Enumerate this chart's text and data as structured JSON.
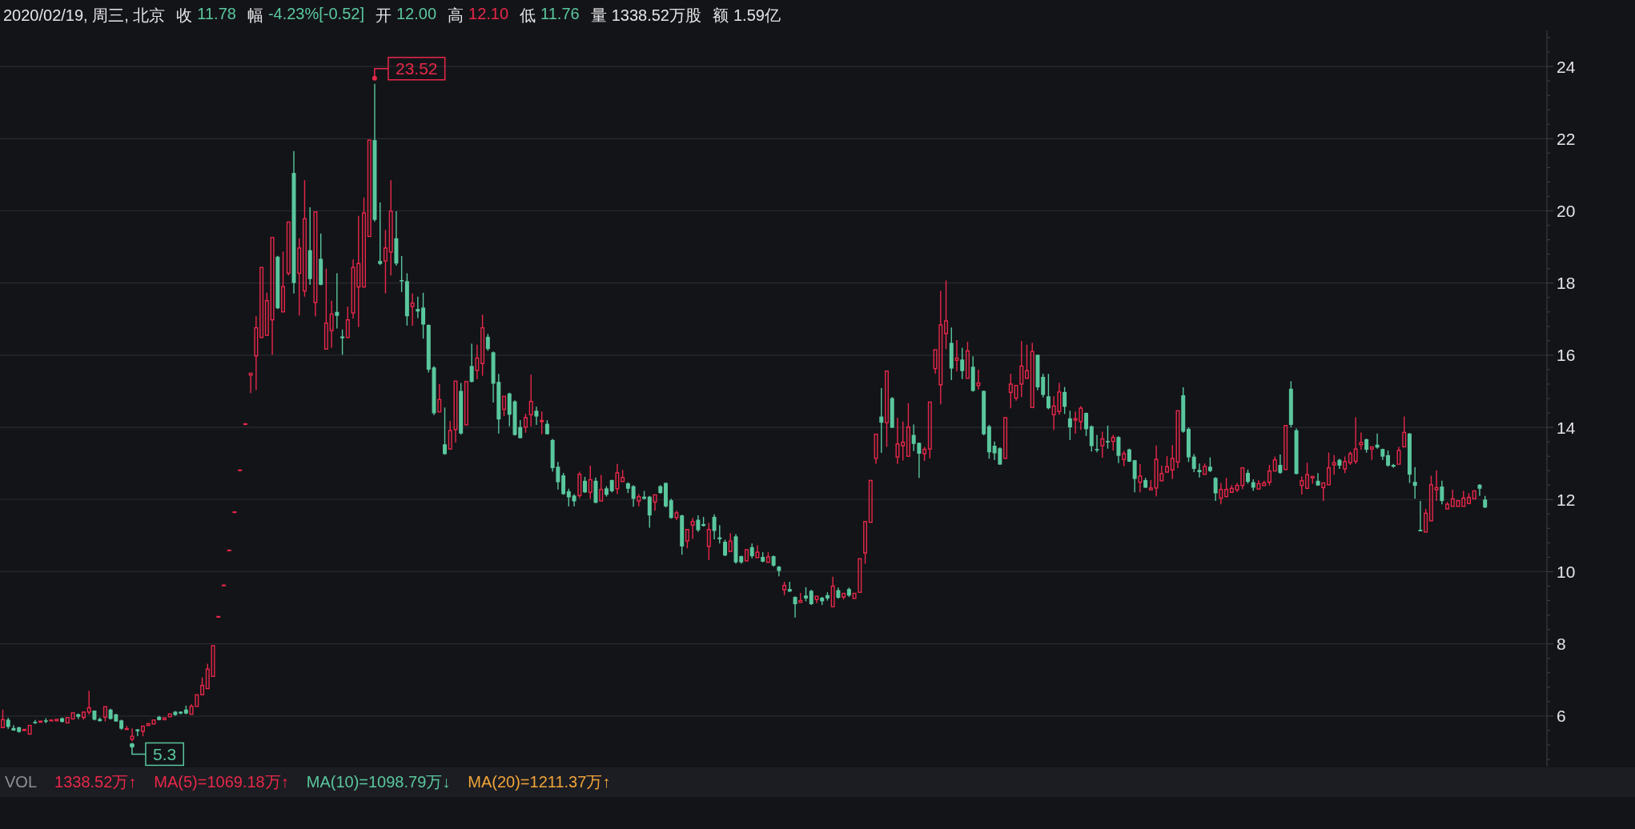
{
  "chart_data": {
    "type": "candlestick",
    "title": "2020/02/19, 周三, 北京",
    "annotations": [
      "收 11.78",
      "幅 -4.23%[-0.52]",
      "开 12.00",
      "高 12.10",
      "低 11.76",
      "量 1338.52万股",
      "额 1.59亿",
      "VOL",
      "1338.52万↑",
      "MA(5)=1069.18万↑",
      "MA(10)=1098.79万↓",
      "MA(20)=1211.37万↑",
      "23.52",
      "5.3"
    ],
    "categories": [
      null,
      null,
      null,
      null,
      null,
      null,
      null,
      null,
      null,
      null,
      null,
      null,
      null,
      null,
      null,
      null,
      null,
      null,
      null,
      null,
      null,
      null,
      null,
      null,
      null,
      null,
      null,
      null,
      null,
      null,
      null,
      null,
      null,
      null,
      null,
      null,
      null,
      null,
      null,
      null,
      null,
      null,
      null,
      null,
      null,
      null,
      null,
      null,
      null,
      null,
      null,
      null,
      null,
      null,
      null,
      null,
      null,
      null,
      null,
      null,
      null,
      null,
      null,
      null,
      null,
      null,
      null,
      null,
      null,
      null,
      null,
      null,
      null,
      null,
      null,
      null,
      null,
      null,
      null,
      null,
      null,
      null,
      null,
      null,
      null,
      null,
      null,
      null,
      null,
      null,
      null,
      null,
      null,
      null,
      null,
      null,
      null,
      null,
      null,
      null,
      null,
      null,
      null,
      null,
      null,
      null,
      null,
      null,
      null,
      null,
      null,
      null,
      null,
      null,
      null,
      null,
      null,
      null,
      null,
      null,
      null,
      null,
      null,
      null,
      null,
      null,
      null,
      null,
      null,
      null,
      null,
      null,
      null,
      null,
      null,
      null,
      null,
      null,
      null,
      null,
      null,
      null,
      null,
      null,
      null,
      null,
      null,
      null,
      null,
      null,
      null,
      null,
      null,
      null,
      null,
      null,
      null,
      null,
      null,
      null,
      null,
      null,
      null,
      null,
      null,
      null,
      null,
      null,
      null,
      null,
      null,
      null,
      null,
      null,
      null,
      null,
      null,
      null,
      null,
      null,
      null,
      null,
      null,
      null,
      null,
      null,
      null,
      null,
      null,
      null,
      null,
      null,
      null,
      null,
      null,
      null,
      null,
      null,
      null,
      null,
      null,
      null,
      null,
      null,
      null,
      null,
      null,
      null,
      null,
      null,
      null,
      null,
      null,
      null,
      null,
      null,
      null,
      null,
      null,
      null,
      null,
      null,
      null,
      null,
      null,
      null,
      null,
      null,
      null,
      null,
      null,
      null,
      null,
      null,
      null,
      null,
      null,
      null,
      null,
      null,
      null,
      null,
      null,
      null,
      null,
      null,
      null,
      null,
      null,
      null,
      null,
      null,
      null,
      null,
      null,
      null,
      null,
      null,
      null,
      null,
      null,
      null,
      null,
      null,
      null,
      null,
      null,
      null,
      null,
      null,
      null,
      null,
      null,
      null,
      null,
      null,
      null,
      null,
      null,
      null,
      null,
      null,
      null,
      null,
      null,
      null,
      null
    ],
    "ohlc": [
      [
        5.68,
        6.18,
        5.65,
        5.9
      ],
      [
        5.9,
        5.95,
        5.65,
        5.7
      ],
      [
        5.67,
        5.75,
        5.59,
        5.6
      ],
      [
        5.69,
        5.7,
        5.54,
        5.56
      ],
      [
        5.6,
        5.64,
        5.6,
        5.63
      ],
      [
        5.5,
        5.76,
        5.49,
        5.74
      ],
      [
        5.84,
        5.89,
        5.78,
        5.82
      ],
      [
        5.83,
        5.88,
        5.81,
        5.86
      ],
      [
        5.88,
        5.94,
        5.8,
        5.85
      ],
      [
        5.87,
        5.9,
        5.86,
        5.89
      ],
      [
        5.87,
        5.94,
        5.83,
        5.91
      ],
      [
        5.94,
        5.96,
        5.82,
        5.84
      ],
      [
        5.81,
        5.97,
        5.8,
        5.96
      ],
      [
        5.92,
        6.12,
        5.9,
        6.09
      ],
      [
        6.05,
        6.07,
        5.92,
        5.98
      ],
      [
        5.96,
        6.15,
        5.9,
        6.11
      ],
      [
        6.11,
        6.7,
        6.04,
        6.23
      ],
      [
        6.15,
        6.16,
        5.88,
        5.9
      ],
      [
        5.92,
        5.96,
        5.85,
        5.86
      ],
      [
        5.97,
        6.27,
        5.85,
        6.26
      ],
      [
        6.18,
        6.2,
        5.9,
        5.92
      ],
      [
        6.05,
        6.06,
        5.84,
        5.85
      ],
      [
        5.88,
        5.9,
        5.62,
        5.65
      ],
      [
        5.63,
        5.73,
        5.62,
        5.65
      ],
      [
        5.36,
        5.66,
        5.3,
        5.44
      ],
      [
        5.63,
        5.64,
        5.44,
        5.58
      ],
      [
        5.58,
        5.74,
        5.44,
        5.72
      ],
      [
        5.74,
        5.8,
        5.73,
        5.79
      ],
      [
        5.78,
        5.92,
        5.77,
        5.89
      ],
      [
        5.98,
        6.0,
        5.88,
        5.89
      ],
      [
        5.9,
        5.96,
        5.89,
        5.95
      ],
      [
        5.98,
        6.07,
        5.95,
        6.06
      ],
      [
        6.12,
        6.14,
        6.01,
        6.03
      ],
      [
        6.12,
        6.13,
        6.05,
        6.07
      ],
      [
        6.18,
        6.29,
        6.05,
        6.07
      ],
      [
        6.05,
        6.33,
        6.03,
        6.27
      ],
      [
        6.27,
        6.6,
        6.26,
        6.59
      ],
      [
        6.59,
        7.07,
        6.55,
        6.85
      ],
      [
        6.76,
        7.45,
        6.72,
        7.3
      ],
      [
        7.1,
        7.95,
        7.05,
        7.95
      ],
      [
        8.75,
        8.75,
        8.75,
        8.75
      ],
      [
        9.62,
        9.62,
        9.62,
        9.62
      ],
      [
        10.59,
        10.59,
        10.59,
        10.59
      ],
      [
        11.65,
        11.65,
        11.65,
        11.65
      ],
      [
        12.81,
        12.81,
        12.81,
        12.81
      ],
      [
        14.09,
        14.09,
        14.09,
        14.09
      ],
      [
        15.45,
        15.5,
        14.95,
        15.5
      ],
      [
        15.98,
        17.08,
        15.04,
        16.76
      ],
      [
        16.49,
        18.45,
        16.45,
        18.43
      ],
      [
        16.55,
        17.73,
        16.5,
        17.51
      ],
      [
        16.98,
        19.28,
        16.01,
        19.26
      ],
      [
        18.73,
        18.75,
        17.28,
        17.3
      ],
      [
        17.2,
        18.87,
        17.18,
        17.9
      ],
      [
        18.27,
        19.7,
        18.21,
        19.69
      ],
      [
        21.05,
        21.66,
        17.71,
        18.0
      ],
      [
        18.27,
        19.24,
        17.1,
        18.97
      ],
      [
        17.78,
        20.85,
        17.62,
        19.78
      ],
      [
        18.91,
        20.1,
        17.95,
        18.11
      ],
      [
        17.46,
        19.98,
        17.08,
        19.97
      ],
      [
        18.67,
        19.37,
        17.94,
        17.95
      ],
      [
        16.17,
        18.4,
        16.14,
        16.89
      ],
      [
        16.68,
        17.51,
        16.2,
        17.14
      ],
      [
        17.2,
        18.27,
        16.74,
        17.09
      ],
      [
        16.52,
        16.71,
        16.01,
        16.47
      ],
      [
        16.49,
        17.35,
        16.47,
        16.98
      ],
      [
        17.17,
        18.65,
        17.01,
        18.43
      ],
      [
        17.89,
        19.86,
        16.78,
        18.54
      ],
      [
        17.89,
        20.37,
        17.87,
        19.94
      ],
      [
        19.29,
        21.98,
        19.29,
        21.96
      ],
      [
        21.96,
        23.52,
        19.7,
        19.75
      ],
      [
        18.61,
        20.23,
        18.5,
        18.53
      ],
      [
        18.61,
        19.47,
        17.71,
        18.97
      ],
      [
        18.86,
        20.85,
        18.21,
        19.99
      ],
      [
        19.24,
        19.99,
        18.48,
        18.54
      ],
      [
        18.08,
        18.75,
        17.75,
        18.05
      ],
      [
        18.05,
        18.27,
        16.82,
        17.08
      ],
      [
        17.35,
        17.71,
        16.82,
        17.44
      ],
      [
        17.28,
        17.62,
        17.03,
        17.21
      ],
      [
        17.32,
        17.73,
        16.46,
        16.85
      ],
      [
        16.84,
        16.85,
        15.52,
        15.6
      ],
      [
        15.66,
        15.7,
        14.34,
        14.39
      ],
      [
        14.43,
        15.2,
        14.4,
        14.77
      ],
      [
        13.53,
        14.55,
        13.24,
        13.26
      ],
      [
        13.4,
        14.18,
        13.35,
        13.91
      ],
      [
        13.94,
        15.3,
        13.58,
        15.28
      ],
      [
        15.01,
        15.23,
        13.8,
        13.83
      ],
      [
        14.07,
        15.28,
        14.05,
        15.27
      ],
      [
        15.7,
        16.32,
        15.25,
        15.26
      ],
      [
        15.58,
        16.29,
        15.33,
        15.92
      ],
      [
        15.77,
        17.12,
        15.43,
        16.76
      ],
      [
        16.51,
        16.59,
        16.12,
        16.17
      ],
      [
        16.08,
        16.1,
        14.69,
        15.21
      ],
      [
        15.26,
        15.48,
        13.83,
        14.22
      ],
      [
        14.5,
        14.88,
        14.31,
        14.86
      ],
      [
        14.94,
        14.96,
        14.03,
        14.35
      ],
      [
        14.72,
        14.75,
        13.77,
        13.79
      ],
      [
        14.01,
        14.2,
        13.7,
        13.7
      ],
      [
        14.01,
        14.38,
        13.85,
        14.27
      ],
      [
        14.35,
        15.46,
        14.03,
        14.72
      ],
      [
        14.46,
        14.57,
        14.07,
        14.3
      ],
      [
        14.16,
        14.44,
        13.81,
        14.19
      ],
      [
        14.1,
        14.2,
        13.8,
        13.81
      ],
      [
        13.65,
        13.68,
        12.77,
        12.87
      ],
      [
        12.91,
        13.04,
        12.28,
        12.48
      ],
      [
        12.67,
        12.74,
        12.13,
        12.15
      ],
      [
        12.23,
        12.3,
        11.81,
        12.06
      ],
      [
        12.11,
        12.15,
        11.81,
        11.95
      ],
      [
        12.11,
        12.77,
        12.04,
        12.7
      ],
      [
        12.52,
        12.63,
        12.18,
        12.2
      ],
      [
        12.2,
        12.94,
        12.02,
        12.55
      ],
      [
        12.52,
        12.61,
        11.9,
        11.91
      ],
      [
        11.96,
        12.68,
        11.93,
        12.28
      ],
      [
        12.31,
        12.37,
        12.08,
        12.13
      ],
      [
        12.54,
        12.55,
        12.2,
        12.23
      ],
      [
        12.3,
        12.99,
        12.15,
        12.74
      ],
      [
        12.5,
        12.82,
        12.48,
        12.61
      ],
      [
        12.45,
        12.48,
        12.18,
        12.3
      ],
      [
        12.37,
        12.4,
        11.8,
        12.02
      ],
      [
        11.96,
        12.15,
        11.81,
        12.08
      ],
      [
        12.08,
        12.24,
        12.0,
        12.02
      ],
      [
        12.08,
        12.1,
        11.22,
        11.56
      ],
      [
        11.93,
        12.17,
        11.69,
        12.13
      ],
      [
        12.37,
        12.4,
        12.16,
        12.18
      ],
      [
        12.46,
        12.47,
        11.78,
        11.81
      ],
      [
        11.98,
        12.02,
        11.47,
        11.49
      ],
      [
        11.5,
        11.69,
        11.43,
        11.63
      ],
      [
        11.56,
        11.58,
        10.47,
        10.7
      ],
      [
        10.85,
        11.19,
        10.65,
        11.17
      ],
      [
        11.29,
        11.49,
        10.91,
        11.39
      ],
      [
        11.44,
        11.56,
        11.1,
        11.15
      ],
      [
        11.32,
        11.52,
        11.25,
        11.27
      ],
      [
        10.7,
        11.36,
        10.32,
        11.17
      ],
      [
        11.52,
        11.59,
        10.9,
        11.13
      ],
      [
        10.95,
        11.29,
        10.78,
        10.9
      ],
      [
        10.83,
        10.89,
        10.43,
        10.45
      ],
      [
        10.56,
        11.07,
        10.54,
        10.85
      ],
      [
        10.98,
        11.04,
        10.22,
        10.26
      ],
      [
        10.43,
        10.45,
        10.22,
        10.26
      ],
      [
        10.3,
        10.63,
        10.28,
        10.61
      ],
      [
        10.68,
        10.78,
        10.37,
        10.43
      ],
      [
        10.39,
        10.73,
        10.34,
        10.54
      ],
      [
        10.41,
        10.54,
        10.26,
        10.28
      ],
      [
        10.26,
        10.54,
        10.24,
        10.41
      ],
      [
        10.43,
        10.45,
        10.14,
        10.17
      ],
      [
        10.14,
        10.16,
        9.87,
        10.02
      ],
      [
        9.5,
        9.72,
        9.35,
        9.62
      ],
      [
        9.52,
        9.72,
        9.44,
        9.45
      ],
      [
        9.3,
        9.32,
        8.73,
        9.1
      ],
      [
        9.15,
        9.41,
        9.13,
        9.2
      ],
      [
        9.34,
        9.57,
        9.18,
        9.26
      ],
      [
        9.47,
        9.5,
        9.08,
        9.1
      ],
      [
        9.23,
        9.35,
        9.13,
        9.32
      ],
      [
        9.28,
        9.3,
        9.08,
        9.18
      ],
      [
        9.35,
        9.43,
        9.2,
        9.26
      ],
      [
        9.03,
        9.86,
        9.01,
        9.6
      ],
      [
        9.49,
        9.56,
        9.25,
        9.28
      ],
      [
        9.3,
        9.43,
        9.23,
        9.4
      ],
      [
        9.52,
        9.56,
        9.3,
        9.34
      ],
      [
        9.26,
        9.41,
        9.25,
        9.4
      ],
      [
        9.43,
        10.37,
        9.42,
        10.36
      ],
      [
        10.52,
        11.4,
        10.22,
        11.39
      ],
      [
        11.37,
        12.54,
        11.36,
        12.53
      ],
      [
        13.14,
        13.82,
        12.99,
        13.81
      ],
      [
        14.3,
        15.09,
        13.29,
        14.13
      ],
      [
        14.13,
        15.57,
        13.46,
        15.56
      ],
      [
        14.81,
        14.84,
        13.98,
        13.99
      ],
      [
        13.18,
        14.27,
        12.99,
        13.54
      ],
      [
        13.49,
        14.16,
        13.08,
        13.59
      ],
      [
        13.2,
        14.67,
        13.19,
        14.01
      ],
      [
        13.79,
        14.08,
        13.34,
        13.54
      ],
      [
        13.57,
        13.58,
        12.6,
        13.27
      ],
      [
        13.27,
        13.46,
        13.07,
        13.39
      ],
      [
        13.4,
        14.71,
        13.14,
        14.7
      ],
      [
        15.63,
        16.16,
        15.49,
        16.15
      ],
      [
        15.18,
        17.78,
        14.64,
        16.84
      ],
      [
        16.6,
        18.07,
        16.17,
        16.95
      ],
      [
        16.34,
        16.77,
        15.31,
        15.63
      ],
      [
        15.86,
        16.42,
        15.55,
        15.92
      ],
      [
        15.88,
        16.2,
        15.34,
        15.56
      ],
      [
        15.36,
        16.37,
        15.34,
        16.12
      ],
      [
        15.68,
        15.97,
        14.99,
        15.01
      ],
      [
        15.16,
        15.6,
        15.05,
        15.23
      ],
      [
        15.01,
        15.02,
        13.78,
        13.81
      ],
      [
        14.03,
        14.07,
        13.13,
        13.31
      ],
      [
        13.49,
        13.61,
        13.09,
        13.28
      ],
      [
        13.42,
        13.45,
        12.96,
        12.97
      ],
      [
        13.14,
        14.28,
        13.13,
        14.27
      ],
      [
        14.97,
        15.49,
        14.53,
        15.2
      ],
      [
        14.81,
        15.17,
        14.74,
        15.16
      ],
      [
        15.2,
        16.39,
        14.84,
        15.7
      ],
      [
        15.36,
        16.29,
        15.34,
        15.57
      ],
      [
        14.55,
        16.34,
        14.53,
        16.1
      ],
      [
        16.01,
        16.02,
        15.03,
        15.11
      ],
      [
        15.4,
        15.49,
        14.83,
        14.9
      ],
      [
        14.86,
        15.48,
        14.5,
        14.53
      ],
      [
        14.35,
        14.86,
        13.93,
        14.59
      ],
      [
        14.44,
        15.23,
        14.35,
        14.98
      ],
      [
        14.98,
        15.12,
        14.37,
        14.57
      ],
      [
        14.25,
        14.46,
        13.65,
        14.0
      ],
      [
        14.2,
        14.44,
        13.83,
        14.24
      ],
      [
        14.16,
        14.59,
        13.93,
        14.53
      ],
      [
        14.4,
        14.41,
        13.76,
        13.95
      ],
      [
        14.03,
        14.05,
        13.33,
        13.48
      ],
      [
        13.4,
        13.79,
        13.31,
        13.37
      ],
      [
        13.49,
        13.88,
        13.16,
        13.68
      ],
      [
        13.62,
        14.05,
        13.41,
        13.59
      ],
      [
        13.61,
        13.79,
        13.36,
        13.72
      ],
      [
        13.73,
        13.76,
        13.01,
        13.21
      ],
      [
        13.11,
        13.35,
        12.92,
        13.27
      ],
      [
        13.39,
        13.41,
        13.04,
        13.05
      ],
      [
        13.09,
        13.1,
        12.2,
        12.57
      ],
      [
        12.48,
        12.98,
        12.2,
        12.65
      ],
      [
        12.54,
        12.6,
        12.32,
        12.33
      ],
      [
        12.27,
        12.54,
        12.26,
        12.32
      ],
      [
        12.32,
        13.5,
        12.09,
        13.11
      ],
      [
        12.52,
        12.94,
        12.48,
        12.72
      ],
      [
        12.76,
        13.2,
        12.74,
        12.91
      ],
      [
        12.82,
        13.51,
        12.57,
        13.14
      ],
      [
        13.04,
        14.47,
        12.87,
        14.46
      ],
      [
        14.89,
        15.11,
        13.85,
        13.88
      ],
      [
        13.96,
        14.0,
        13.04,
        13.17
      ],
      [
        13.19,
        13.26,
        12.76,
        12.85
      ],
      [
        12.82,
        13.0,
        12.61,
        12.76
      ],
      [
        12.7,
        13.0,
        12.68,
        12.92
      ],
      [
        12.91,
        13.17,
        12.76,
        12.79
      ],
      [
        12.6,
        12.62,
        11.96,
        12.17
      ],
      [
        12.04,
        12.46,
        11.87,
        12.28
      ],
      [
        12.08,
        12.6,
        12.04,
        12.28
      ],
      [
        12.2,
        12.4,
        12.18,
        12.31
      ],
      [
        12.27,
        12.46,
        12.21,
        12.39
      ],
      [
        12.39,
        12.91,
        12.29,
        12.88
      ],
      [
        12.74,
        12.83,
        12.44,
        12.49
      ],
      [
        12.48,
        12.56,
        12.24,
        12.33
      ],
      [
        12.29,
        12.54,
        12.27,
        12.44
      ],
      [
        12.39,
        12.52,
        12.35,
        12.46
      ],
      [
        12.48,
        12.96,
        12.39,
        12.79
      ],
      [
        12.79,
        13.19,
        12.77,
        13.1
      ],
      [
        12.96,
        13.25,
        12.71,
        12.74
      ],
      [
        12.83,
        14.06,
        12.82,
        14.05
      ],
      [
        15.07,
        15.28,
        14.0,
        14.07
      ],
      [
        13.92,
        13.97,
        12.7,
        12.71
      ],
      [
        12.39,
        12.64,
        12.14,
        12.52
      ],
      [
        12.31,
        13.02,
        12.29,
        12.69
      ],
      [
        12.6,
        12.66,
        12.44,
        12.64
      ],
      [
        12.52,
        12.73,
        12.38,
        12.39
      ],
      [
        12.33,
        12.47,
        11.96,
        12.46
      ],
      [
        12.41,
        13.3,
        12.39,
        12.88
      ],
      [
        12.96,
        13.23,
        12.69,
        13.02
      ],
      [
        13.1,
        13.13,
        12.85,
        12.94
      ],
      [
        12.85,
        13.19,
        12.73,
        13.05
      ],
      [
        13.02,
        13.33,
        12.96,
        13.27
      ],
      [
        13.06,
        14.28,
        12.99,
        13.4
      ],
      [
        13.52,
        13.86,
        13.38,
        13.58
      ],
      [
        13.67,
        13.69,
        13.3,
        13.38
      ],
      [
        13.4,
        13.5,
        13.1,
        13.46
      ],
      [
        13.52,
        13.83,
        13.41,
        13.44
      ],
      [
        13.4,
        13.41,
        13.1,
        13.19
      ],
      [
        13.23,
        13.36,
        12.91,
        12.94
      ],
      [
        12.96,
        12.99,
        12.88,
        12.91
      ],
      [
        12.98,
        13.46,
        12.96,
        13.36
      ],
      [
        13.46,
        14.3,
        13.45,
        13.86
      ],
      [
        13.83,
        13.84,
        12.46,
        12.69
      ],
      [
        12.49,
        12.9,
        12.02,
        12.38
      ],
      [
        11.16,
        11.96,
        11.12,
        11.12
      ],
      [
        11.1,
        11.74,
        11.05,
        11.62
      ],
      [
        11.41,
        12.66,
        11.4,
        12.41
      ],
      [
        12.27,
        12.81,
        11.96,
        12.33
      ],
      [
        12.36,
        12.52,
        11.87,
        11.96
      ],
      [
        11.74,
        11.93,
        11.71,
        11.87
      ],
      [
        11.81,
        12.27,
        11.77,
        12.02
      ],
      [
        11.81,
        11.99,
        11.79,
        11.97
      ],
      [
        11.81,
        12.24,
        11.77,
        12.04
      ],
      [
        11.89,
        12.18,
        11.87,
        12.06
      ],
      [
        12.02,
        12.27,
        11.99,
        12.24
      ],
      [
        12.41,
        12.43,
        12.1,
        12.3
      ],
      [
        12.0,
        12.1,
        11.76,
        11.78
      ],
      null,
      null,
      null,
      null,
      null,
      null,
      null,
      null,
      null,
      null,
      null
    ],
    "colors": [
      "#e8284a",
      "#5ac79e",
      "#5ac79e",
      "#5ac79e",
      "#e8284a",
      "#e8284a",
      "#5ac79e",
      "#e8284a",
      "#5ac79e",
      "#e8284a",
      "#e8284a",
      "#5ac79e",
      "#e8284a",
      "#e8284a",
      "#5ac79e",
      "#e8284a",
      "#e8284a",
      "#5ac79e",
      "#5ac79e",
      "#e8284a",
      "#5ac79e",
      "#5ac79e",
      "#5ac79e",
      "#e8284a",
      "#e8284a",
      "#5ac79e",
      "#e8284a",
      "#e8284a",
      "#e8284a",
      "#5ac79e",
      "#e8284a",
      "#e8284a",
      "#5ac79e",
      "#5ac79e",
      "#5ac79e",
      "#e8284a",
      "#e8284a",
      "#e8284a",
      "#e8284a",
      "#e8284a",
      "#e8284a",
      "#e8284a",
      "#e8284a",
      "#e8284a",
      "#e8284a",
      "#e8284a",
      "#e8284a",
      "#e8284a",
      "#e8284a",
      "#e8284a",
      "#e8284a",
      "#5ac79e",
      "#e8284a",
      "#e8284a",
      "#5ac79e",
      "#e8284a",
      "#e8284a",
      "#5ac79e",
      "#e8284a",
      "#5ac79e",
      "#e8284a",
      "#e8284a",
      "#5ac79e",
      "#5ac79e",
      "#e8284a",
      "#e8284a",
      "#e8284a",
      "#e8284a",
      "#e8284a",
      "#5ac79e",
      "#5ac79e",
      "#e8284a",
      "#e8284a",
      "#5ac79e",
      "#5ac79e",
      "#5ac79e",
      "#e8284a",
      "#5ac79e",
      "#5ac79e",
      "#5ac79e",
      "#5ac79e",
      "#e8284a",
      "#5ac79e",
      "#e8284a",
      "#e8284a",
      "#5ac79e",
      "#e8284a",
      "#5ac79e",
      "#e8284a",
      "#e8284a",
      "#5ac79e",
      "#5ac79e",
      "#5ac79e",
      "#e8284a",
      "#5ac79e",
      "#5ac79e",
      "#5ac79e",
      "#e8284a",
      "#e8284a",
      "#5ac79e",
      "#e8284a",
      "#5ac79e",
      "#5ac79e",
      "#5ac79e",
      "#5ac79e",
      "#5ac79e",
      "#5ac79e",
      "#e8284a",
      "#5ac79e",
      "#e8284a",
      "#5ac79e",
      "#e8284a",
      "#5ac79e",
      "#5ac79e",
      "#e8284a",
      "#e8284a",
      "#5ac79e",
      "#5ac79e",
      "#e8284a",
      "#5ac79e",
      "#5ac79e",
      "#e8284a",
      "#5ac79e",
      "#5ac79e",
      "#5ac79e",
      "#e8284a",
      "#5ac79e",
      "#e8284a",
      "#e8284a",
      "#5ac79e",
      "#5ac79e",
      "#e8284a",
      "#5ac79e",
      "#5ac79e",
      "#5ac79e",
      "#e8284a",
      "#5ac79e",
      "#5ac79e",
      "#e8284a",
      "#5ac79e",
      "#e8284a",
      "#5ac79e",
      "#e8284a",
      "#5ac79e",
      "#5ac79e",
      "#e8284a",
      "#5ac79e",
      "#5ac79e",
      "#e8284a",
      "#5ac79e",
      "#5ac79e",
      "#e8284a",
      "#5ac79e",
      "#5ac79e",
      "#e8284a",
      "#5ac79e",
      "#e8284a",
      "#5ac79e",
      "#e8284a",
      "#e8284a",
      "#e8284a",
      "#e8284a",
      "#e8284a",
      "#5ac79e",
      "#e8284a",
      "#5ac79e",
      "#e8284a",
      "#e8284a",
      "#e8284a",
      "#5ac79e",
      "#5ac79e",
      "#e8284a",
      "#e8284a",
      "#e8284a",
      "#e8284a",
      "#e8284a",
      "#5ac79e",
      "#e8284a",
      "#5ac79e",
      "#e8284a",
      "#5ac79e",
      "#e8284a",
      "#5ac79e",
      "#5ac79e",
      "#5ac79e",
      "#5ac79e",
      "#e8284a",
      "#e8284a",
      "#e8284a",
      "#e8284a",
      "#e8284a",
      "#e8284a",
      "#5ac79e",
      "#5ac79e",
      "#5ac79e",
      "#e8284a",
      "#e8284a",
      "#5ac79e",
      "#5ac79e",
      "#e8284a",
      "#e8284a",
      "#5ac79e",
      "#5ac79e",
      "#5ac79e",
      "#e8284a",
      "#5ac79e",
      "#e8284a",
      "#5ac79e",
      "#e8284a",
      "#5ac79e",
      "#5ac79e",
      "#e8284a",
      "#5ac79e",
      "#e8284a",
      "#e8284a",
      "#e8284a",
      "#e8284a",
      "#e8284a",
      "#e8284a",
      "#5ac79e",
      "#5ac79e",
      "#5ac79e",
      "#5ac79e",
      "#e8284a",
      "#5ac79e",
      "#5ac79e",
      "#e8284a",
      "#e8284a",
      "#e8284a",
      "#e8284a",
      "#e8284a",
      "#5ac79e",
      "#5ac79e",
      "#e8284a",
      "#e8284a",
      "#e8284a",
      "#e8284a",
      "#5ac79e",
      "#e8284a",
      "#5ac79e",
      "#5ac79e",
      "#e8284a",
      "#e8284a",
      "#e8284a",
      "#5ac79e",
      "#e8284a",
      "#e8284a",
      "#e8284a",
      "#5ac79e",
      "#e8284a",
      "#e8284a",
      "#e8284a",
      "#e8284a",
      "#5ac79e",
      "#e8284a",
      "#5ac79e",
      "#5ac79e",
      "#5ac79e",
      "#5ac79e",
      "#e8284a",
      "#e8284a",
      "#5ac79e",
      "#5ac79e",
      "#5ac79e",
      "#e8284a",
      "#e8284a",
      "#e8284a",
      "#5ac79e",
      "#e8284a",
      "#e8284a",
      "#e8284a",
      "#e8284a",
      "#e8284a",
      "#e8284a",
      "#5ac79e",
      "#5ac79e",
      null,
      null,
      null,
      null,
      null,
      null,
      null,
      null,
      null,
      null,
      null
    ],
    "ylim": [
      4.6,
      25
    ],
    "yticks": [
      {
        "value": 4.8,
        "label": null
      },
      {
        "value": 5.2,
        "label": null
      },
      {
        "value": 5.6,
        "label": null
      },
      6,
      {
        "value": 6.4,
        "label": null
      },
      {
        "value": 6.8,
        "label": null
      },
      {
        "value": 7.2,
        "label": null
      },
      {
        "value": 7.6,
        "label": null
      },
      8,
      {
        "value": 8.4,
        "label": null
      },
      {
        "value": 8.8,
        "label": null
      },
      {
        "value": 9.2,
        "label": null
      },
      {
        "value": 9.6,
        "label": null
      },
      10,
      {
        "value": 10.4,
        "label": null
      },
      {
        "value": 10.8,
        "label": null
      },
      {
        "value": 11.2,
        "label": null
      },
      {
        "value": 11.6,
        "label": null
      },
      12,
      {
        "value": 12.4,
        "label": null
      },
      {
        "value": 12.8,
        "label": null
      },
      {
        "value": 13.2,
        "label": null
      },
      {
        "value": 13.6,
        "label": null
      },
      14,
      {
        "value": 14.4,
        "label": null
      },
      {
        "value": 14.8,
        "label": null
      },
      {
        "value": 15.2,
        "label": null
      },
      {
        "value": 15.6,
        "label": null
      },
      16,
      {
        "value": 16.4,
        "label": null
      },
      {
        "value": 16.8,
        "label": null
      },
      {
        "value": 17.2,
        "label": null
      },
      {
        "value": 17.6,
        "label": null
      },
      18,
      {
        "value": 18.4,
        "label": null
      },
      {
        "value": 18.8,
        "label": null
      },
      {
        "value": 19.2,
        "label": null
      },
      {
        "value": 19.6,
        "label": null
      },
      20,
      {
        "value": 20.4,
        "label": null
      },
      {
        "value": 20.8,
        "label": null
      },
      {
        "value": 21.2,
        "label": null
      },
      {
        "value": 21.6,
        "label": null
      },
      22,
      {
        "value": 22.4,
        "label": null
      },
      {
        "value": 22.8,
        "label": null
      },
      {
        "value": 23.2,
        "label": null
      },
      {
        "value": 23.6,
        "label": null
      },
      24,
      {
        "value": 24.4,
        "label": null
      },
      {
        "value": 24.8,
        "label": null
      }
    ],
    "grid": "y"
  }
}
